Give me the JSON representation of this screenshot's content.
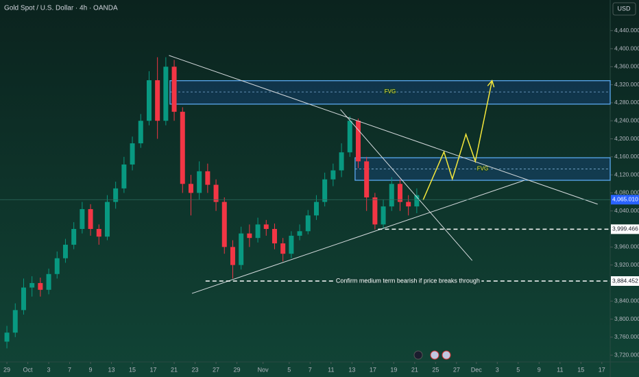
{
  "chart_data": {
    "type": "candlestick",
    "title": "Gold Spot / U.S. Dollar · 4h · OANDA",
    "currency": "USD",
    "up_color": "#089981",
    "down_color": "#f23645",
    "grid": false,
    "xlim": [
      -0.66,
      57.7
    ],
    "ylim": [
      3705,
      4508
    ],
    "xticks": [
      {
        "value": 0,
        "label": "29"
      },
      {
        "value": 2,
        "label": "Oct"
      },
      {
        "value": 4,
        "label": "3"
      },
      {
        "value": 6,
        "label": "7"
      },
      {
        "value": 8,
        "label": "9"
      },
      {
        "value": 10,
        "label": "13"
      },
      {
        "value": 12,
        "label": "15"
      },
      {
        "value": 14,
        "label": "17"
      },
      {
        "value": 16,
        "label": "21"
      },
      {
        "value": 18,
        "label": "23"
      },
      {
        "value": 20,
        "label": "27"
      },
      {
        "value": 22,
        "label": "29"
      },
      {
        "value": 24.5,
        "label": "Nov"
      },
      {
        "value": 27,
        "label": "5"
      },
      {
        "value": 29,
        "label": "7"
      },
      {
        "value": 31,
        "label": "11"
      },
      {
        "value": 33,
        "label": "13"
      },
      {
        "value": 35,
        "label": "17"
      },
      {
        "value": 37,
        "label": "19"
      },
      {
        "value": 39,
        "label": "21"
      },
      {
        "value": 41,
        "label": "25"
      },
      {
        "value": 43,
        "label": "27"
      },
      {
        "value": 44.9,
        "label": "Dec"
      },
      {
        "value": 46.9,
        "label": "3"
      },
      {
        "value": 48.9,
        "label": "5"
      },
      {
        "value": 50.9,
        "label": "9"
      },
      {
        "value": 52.9,
        "label": "11"
      },
      {
        "value": 54.9,
        "label": "15"
      },
      {
        "value": 56.9,
        "label": "17"
      }
    ],
    "yticks": [
      {
        "value": 3720,
        "label": "3,720.000"
      },
      {
        "value": 3760,
        "label": "3,760.000"
      },
      {
        "value": 3800,
        "label": "3,800.000"
      },
      {
        "value": 3840,
        "label": "3,840.000"
      },
      {
        "value": 3880,
        "label": "3,880.000"
      },
      {
        "value": 3920,
        "label": "3,920.000"
      },
      {
        "value": 3960,
        "label": "3,960.000"
      },
      {
        "value": 4000,
        "label": "4,000.000"
      },
      {
        "value": 4040,
        "label": "4,040.000"
      },
      {
        "value": 4080,
        "label": "4,080.000"
      },
      {
        "value": 4120,
        "label": "4,120.000"
      },
      {
        "value": 4160,
        "label": "4,160.000"
      },
      {
        "value": 4200,
        "label": "4,200.000"
      },
      {
        "value": 4240,
        "label": "4,240.000"
      },
      {
        "value": 4280,
        "label": "4,280.000"
      },
      {
        "value": 4320,
        "label": "4,320.000"
      },
      {
        "value": 4360,
        "label": "4,360.000"
      },
      {
        "value": 4400,
        "label": "4,400.000"
      },
      {
        "value": 4440,
        "label": "4,440.000"
      }
    ],
    "x": [
      0,
      0.8,
      1.6,
      2.4,
      3.2,
      4,
      4.8,
      5.6,
      6.4,
      7.2,
      8,
      8.8,
      9.6,
      10.4,
      11.2,
      12,
      12.8,
      13.6,
      14.4,
      15.2,
      16,
      16.8,
      17.6,
      18.4,
      19.2,
      20,
      20.8,
      21.6,
      22.4,
      23.2,
      24,
      24.8,
      25.6,
      26.4,
      27.2,
      28,
      28.8,
      29.6,
      30.4,
      31.2,
      32,
      32.8,
      33.6,
      34.4,
      35.2,
      36,
      36.8,
      37.6,
      38.4,
      39.2
    ],
    "open": [
      3750,
      3770,
      3820,
      3870,
      3880,
      3865,
      3900,
      3935,
      3965,
      4000,
      4044,
      4000,
      3983,
      4060,
      4090,
      4143,
      4190,
      4240,
      4330,
      4240,
      4360,
      4260,
      4100,
      4080,
      4128,
      4098,
      4060,
      3960,
      3920,
      3990,
      3980,
      4010,
      4000,
      3968,
      3945,
      3985,
      3995,
      4030,
      4060,
      4110,
      4130,
      4170,
      4240,
      4150,
      4070,
      4010,
      4050,
      4100,
      4060,
      4050
    ],
    "high": [
      3785,
      3835,
      3890,
      3895,
      3892,
      3912,
      3950,
      3978,
      4015,
      4060,
      4055,
      4010,
      4075,
      4105,
      4160,
      4205,
      4255,
      4350,
      4381,
      4381,
      4375,
      4270,
      4120,
      4150,
      4145,
      4110,
      4070,
      3975,
      4005,
      4010,
      4025,
      4020,
      4012,
      3980,
      3995,
      4010,
      4042,
      4075,
      4125,
      4145,
      4190,
      4250,
      4245,
      4160,
      4080,
      4065,
      4115,
      4110,
      4075,
      4090
    ],
    "low": [
      3735,
      3760,
      3810,
      3850,
      3850,
      3855,
      3890,
      3925,
      3955,
      3990,
      3985,
      3965,
      3975,
      4045,
      4080,
      4130,
      4180,
      4230,
      4200,
      4230,
      4240,
      4080,
      4030,
      4065,
      4080,
      4040,
      3945,
      3890,
      3910,
      3960,
      3970,
      3985,
      3955,
      3928,
      3935,
      3975,
      3988,
      4020,
      4050,
      4095,
      4115,
      4160,
      4135,
      4040,
      3999,
      4000,
      4040,
      4040,
      4030,
      4035
    ],
    "close": [
      3770,
      3820,
      3870,
      3880,
      3865,
      3900,
      3935,
      3965,
      4000,
      4044,
      4000,
      3983,
      4060,
      4090,
      4143,
      4190,
      4240,
      4330,
      4240,
      4360,
      4260,
      4100,
      4080,
      4128,
      4098,
      4060,
      3960,
      3920,
      3990,
      3980,
      4010,
      4000,
      3968,
      3945,
      3985,
      3995,
      4030,
      4060,
      4110,
      4130,
      4170,
      4240,
      4150,
      4070,
      4010,
      4050,
      4100,
      4060,
      4050,
      4075
    ],
    "zones": [
      {
        "label": "FVG",
        "x0": 15.6,
        "y0": 4277,
        "y1": 4329,
        "mid": 4304
      },
      {
        "label": "FVG",
        "x0": 33.3,
        "y0": 4108,
        "y1": 4158,
        "mid": 4133
      }
    ],
    "trend_lines": [
      {
        "x": [
          15.5,
          56.5
        ],
        "y": [
          4385,
          4055
        ]
      },
      {
        "x": [
          17.7,
          49.5
        ],
        "y": [
          3857,
          4108
        ]
      },
      {
        "x": [
          31.9,
          44.5
        ],
        "y": [
          4265,
          3930
        ]
      }
    ],
    "projection": {
      "color": "#f5e83b",
      "x": [
        39.8,
        41.8,
        42.6,
        43.9,
        44.8,
        46.4
      ],
      "y": [
        4064,
        4171,
        4111,
        4210,
        4150,
        4329
      ]
    },
    "levels": [
      {
        "value": 3999.466,
        "label": "3,999.466",
        "x0": 35.5
      },
      {
        "value": 3884.452,
        "label": "3,884.452",
        "x0": 19,
        "text": "Confirm medium term bearish if price breaks through"
      }
    ],
    "last_price": {
      "value": 4065.01,
      "label": "4,065.010"
    }
  }
}
